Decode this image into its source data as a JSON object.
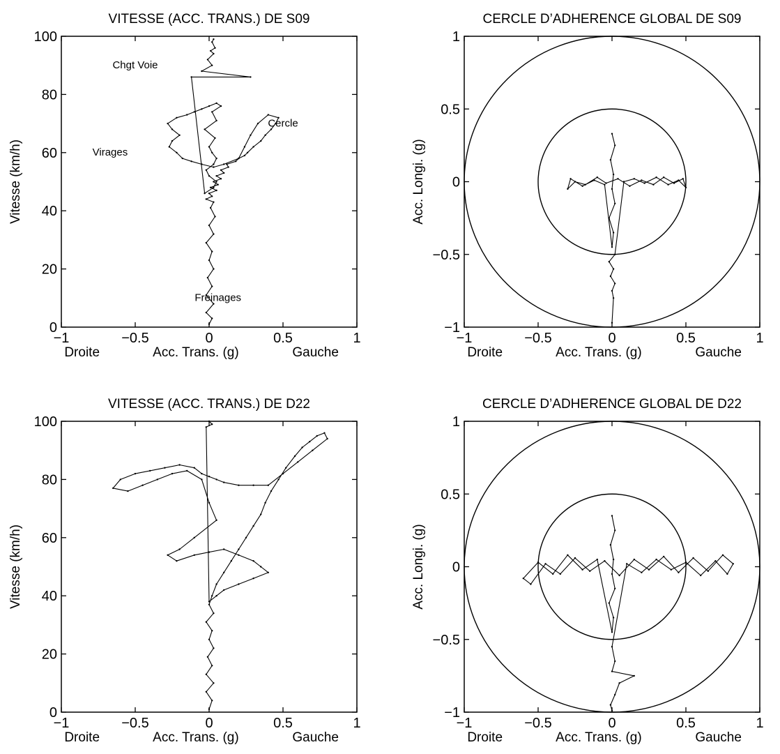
{
  "figure": {
    "colors": {
      "ink": "#000000",
      "background": "#ffffff"
    }
  },
  "chart_data": [
    {
      "type": "line",
      "title": "VITESSE (ACC. TRANS.) DE S09",
      "xlabel": "Acc. Trans. (g)",
      "xlabel_left": "Droite",
      "xlabel_right": "Gauche",
      "ylabel": "Vitesse (km/h)",
      "xlim": [
        -1,
        1
      ],
      "ylim": [
        0,
        100
      ],
      "xticks": [
        -1,
        -0.5,
        0,
        0.5,
        1
      ],
      "yticks": [
        0,
        20,
        40,
        60,
        80,
        100
      ],
      "xticklabels": [
        "−1",
        "−0.5",
        "0",
        "0.5",
        "1"
      ],
      "yticklabels": [
        "0",
        "20",
        "40",
        "60",
        "80",
        "100"
      ],
      "grid": false,
      "annotations": [
        {
          "text": "Chgt Voie",
          "x": -0.5,
          "y": 89
        },
        {
          "text": "Cercle",
          "x": 0.5,
          "y": 69
        },
        {
          "text": "Virages",
          "x": -0.67,
          "y": 59
        },
        {
          "text": "Freinages",
          "x": 0.06,
          "y": 9
        }
      ],
      "series": [
        {
          "x": [
            0.0,
            0.02,
            -0.02,
            0.03,
            -0.02,
            0.02,
            -0.01,
            0.03,
            0.0,
            0.02,
            -0.02,
            0.03,
            0.0,
            0.04,
            0.01,
            0.03,
            -0.02,
            0.02,
            0.0,
            0.05,
            0.01,
            0.06,
            0.03,
            0.08,
            0.05,
            0.1,
            0.08,
            0.13,
            0.12,
            0.18,
            0.2,
            0.24,
            0.26,
            0.3,
            0.35,
            0.38,
            0.42,
            0.45,
            0.47,
            0.4,
            0.33,
            0.28,
            0.24,
            0.2,
            0.1,
            0.03,
            -0.05,
            -0.12,
            -0.18,
            -0.22,
            -0.27,
            -0.25,
            -0.2,
            -0.25,
            -0.28,
            -0.22,
            -0.15,
            -0.1,
            -0.05,
            0.0,
            0.05,
            0.08,
            0.02,
            0.05,
            -0.03,
            0.04,
            0.0,
            0.02,
            0.05,
            0.03,
            -0.02,
            0.0,
            0.05,
            0.03,
            -0.03,
            -0.12,
            0.28,
            -0.05,
            0.02,
            -0.01,
            0.03,
            0.01,
            0.04,
            0.02,
            0.03
          ],
          "y": [
            1,
            3,
            5,
            8,
            11,
            14,
            17,
            20,
            23,
            26,
            29,
            32,
            35,
            38,
            41,
            43,
            44,
            45,
            46,
            47,
            48,
            49,
            50,
            51,
            52,
            53,
            54,
            55,
            56,
            57,
            58,
            59,
            60,
            62,
            64,
            66,
            68,
            70,
            72,
            73,
            70,
            66,
            62,
            58,
            56,
            55,
            56,
            57,
            58,
            60,
            62,
            64,
            66,
            68,
            70,
            72,
            73,
            74,
            75,
            76,
            77,
            76,
            74,
            71,
            68,
            65,
            62,
            60,
            58,
            56,
            54,
            52,
            50,
            48,
            46,
            86,
            86,
            88,
            90,
            92,
            94,
            95,
            96,
            98,
            99
          ]
        }
      ]
    },
    {
      "type": "line",
      "title": "CERCLE D’ADHERENCE GLOBAL DE S09",
      "xlabel": "Acc. Trans. (g)",
      "xlabel_left": "Droite",
      "xlabel_right": "Gauche",
      "ylabel": "Acc. Longi. (g)",
      "xlim": [
        -1,
        1
      ],
      "ylim": [
        -1,
        1
      ],
      "xticks": [
        -1,
        -0.5,
        0,
        0.5,
        1
      ],
      "yticks": [
        -1,
        -0.5,
        0,
        0.5,
        1
      ],
      "xticklabels": [
        "−1",
        "−0.5",
        "0",
        "0.5",
        "1"
      ],
      "yticklabels": [
        "−1",
        "−0.5",
        "0",
        "0.5",
        "1"
      ],
      "grid": false,
      "reference_circles": [
        0.5,
        1.0
      ],
      "series": [
        {
          "x": [
            0.0,
            0.02,
            -0.01,
            0.01,
            0.0,
            0.02,
            -0.02,
            0.01,
            0.0,
            -0.05,
            -0.12,
            -0.2,
            -0.28,
            -0.3,
            -0.25,
            -0.18,
            -0.1,
            -0.04,
            0.04,
            0.12,
            0.2,
            0.28,
            0.35,
            0.42,
            0.48,
            0.5,
            0.45,
            0.38,
            0.3,
            0.22,
            0.15,
            0.08,
            0.02,
            -0.02,
            0.01,
            -0.01,
            0.02,
            0.0,
            0.01,
            0.0
          ],
          "y": [
            0.33,
            0.25,
            0.15,
            0.05,
            -0.05,
            -0.15,
            -0.25,
            -0.35,
            -0.45,
            -0.02,
            0.01,
            -0.03,
            0.02,
            -0.05,
            0.0,
            -0.02,
            0.03,
            -0.01,
            0.02,
            -0.03,
            0.01,
            -0.02,
            0.03,
            -0.01,
            0.02,
            -0.04,
            0.01,
            -0.02,
            0.03,
            -0.01,
            0.02,
            0.0,
            -0.5,
            -0.55,
            -0.6,
            -0.65,
            -0.7,
            -0.75,
            -0.8,
            -0.97
          ]
        }
      ]
    },
    {
      "type": "line",
      "title": "VITESSE (ACC. TRANS.) DE D22",
      "xlabel": "Acc. Trans. (g)",
      "xlabel_left": "Droite",
      "xlabel_right": "Gauche",
      "ylabel": "Vitesse (km/h)",
      "xlim": [
        -1,
        1
      ],
      "ylim": [
        0,
        100
      ],
      "xticks": [
        -1,
        -0.5,
        0,
        0.5,
        1
      ],
      "yticks": [
        0,
        20,
        40,
        60,
        80,
        100
      ],
      "xticklabels": [
        "−1",
        "−0.5",
        "0",
        "0.5",
        "1"
      ],
      "yticklabels": [
        "0",
        "20",
        "40",
        "60",
        "80",
        "100"
      ],
      "grid": false,
      "series": [
        {
          "x": [
            0.0,
            0.02,
            -0.02,
            0.03,
            -0.02,
            0.02,
            -0.01,
            0.03,
            0.0,
            0.02,
            -0.02,
            0.03,
            0.0,
            0.02,
            0.05,
            0.1,
            0.15,
            0.2,
            0.25,
            0.3,
            0.35,
            0.38,
            0.42,
            0.47,
            0.52,
            0.58,
            0.63,
            0.68,
            0.73,
            0.78,
            0.8,
            0.7,
            0.6,
            0.5,
            0.4,
            0.3,
            0.2,
            0.1,
            0.05,
            0.0,
            -0.05,
            -0.1,
            -0.2,
            -0.3,
            -0.4,
            -0.5,
            -0.6,
            -0.65,
            -0.55,
            -0.45,
            -0.35,
            -0.25,
            -0.15,
            -0.05,
            0.0,
            0.05,
            -0.1,
            -0.2,
            -0.28,
            -0.22,
            -0.1,
            0.0,
            0.1,
            0.2,
            0.3,
            0.35,
            0.4,
            0.3,
            0.2,
            0.1,
            0.05,
            0.0,
            -0.02,
            0.02,
            0.0
          ],
          "y": [
            1,
            4,
            7,
            10,
            13,
            16,
            19,
            22,
            25,
            28,
            31,
            34,
            37,
            40,
            44,
            48,
            52,
            56,
            60,
            64,
            68,
            72,
            76,
            80,
            84,
            88,
            91,
            93,
            95,
            96,
            94,
            90,
            86,
            82,
            78,
            78,
            78,
            79,
            80,
            81,
            82,
            84,
            85,
            84,
            83,
            82,
            80,
            77,
            76,
            78,
            80,
            82,
            83,
            80,
            72,
            66,
            60,
            56,
            54,
            52,
            54,
            55,
            56,
            54,
            52,
            50,
            48,
            46,
            44,
            42,
            40,
            38,
            98,
            99,
            100
          ]
        }
      ]
    },
    {
      "type": "line",
      "title": "CERCLE D’ADHERENCE GLOBAL DE D22",
      "xlabel": "Acc. Trans. (g)",
      "xlabel_left": "Droite",
      "xlabel_right": "Gauche",
      "ylabel": "Acc. Longi. (g)",
      "xlim": [
        -1,
        1
      ],
      "ylim": [
        -1,
        1
      ],
      "xticks": [
        -1,
        -0.5,
        0,
        0.5,
        1
      ],
      "yticks": [
        -1,
        -0.5,
        0,
        0.5,
        1
      ],
      "xticklabels": [
        "−1",
        "−0.5",
        "0",
        "0.5",
        "1"
      ],
      "yticklabels": [
        "−1",
        "−0.5",
        "0",
        "0.5",
        "1"
      ],
      "grid": false,
      "reference_circles": [
        0.5,
        1.0
      ],
      "series": [
        {
          "x": [
            0.0,
            0.02,
            -0.01,
            0.01,
            0.0,
            0.02,
            -0.02,
            0.01,
            0.0,
            -0.1,
            -0.2,
            -0.3,
            -0.4,
            -0.5,
            -0.6,
            -0.55,
            -0.45,
            -0.35,
            -0.25,
            -0.15,
            -0.05,
            0.05,
            0.15,
            0.25,
            0.35,
            0.45,
            0.55,
            0.65,
            0.75,
            0.82,
            0.78,
            0.7,
            0.6,
            0.5,
            0.4,
            0.3,
            0.2,
            0.1,
            0.0,
            0.02,
            0.0,
            0.15,
            0.05,
            0.02,
            -0.01,
            0.0
          ],
          "y": [
            0.35,
            0.25,
            0.15,
            0.05,
            -0.05,
            -0.15,
            -0.25,
            -0.35,
            -0.45,
            0.05,
            -0.02,
            0.08,
            -0.05,
            0.03,
            -0.08,
            -0.12,
            0.02,
            -0.05,
            0.06,
            -0.03,
            0.04,
            -0.06,
            0.05,
            -0.02,
            0.07,
            -0.04,
            0.06,
            -0.03,
            0.08,
            0.02,
            -0.05,
            0.04,
            -0.06,
            0.03,
            -0.02,
            0.05,
            -0.04,
            0.02,
            -0.55,
            -0.65,
            -0.72,
            -0.75,
            -0.8,
            -0.88,
            -0.95,
            -0.99
          ]
        }
      ]
    }
  ]
}
